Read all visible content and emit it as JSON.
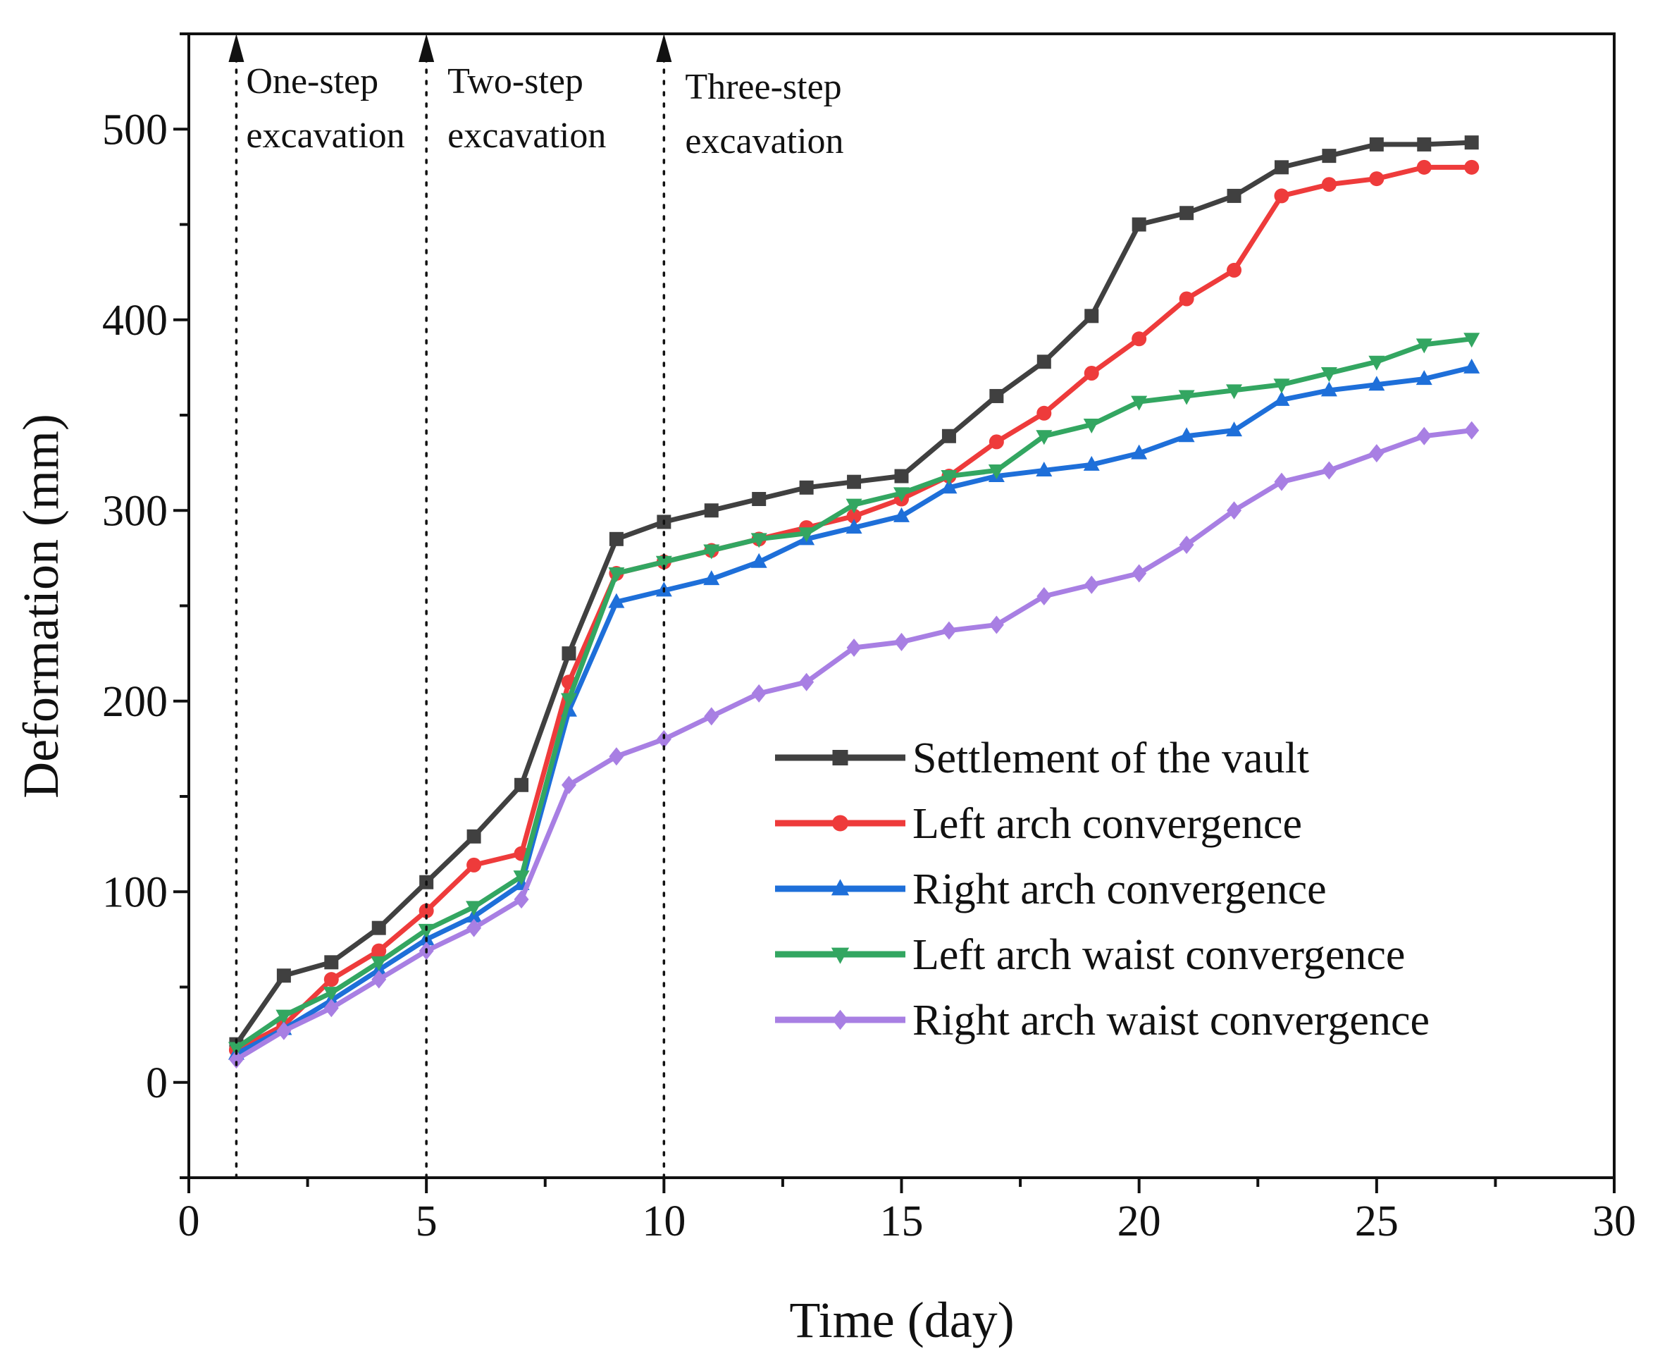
{
  "chart_data": {
    "type": "line",
    "title": "",
    "xlabel": "Time (day)",
    "ylabel": "Deformation (mm)",
    "xlim": [
      0,
      30
    ],
    "ylim": [
      -50,
      550
    ],
    "xticks": [
      0,
      5,
      10,
      15,
      20,
      25,
      30
    ],
    "yticks": [
      0,
      100,
      200,
      300,
      400,
      500
    ],
    "grid": false,
    "legend_position": "bottom-right",
    "x": [
      1,
      2,
      3,
      4,
      5,
      6,
      7,
      8,
      9,
      10,
      11,
      12,
      13,
      14,
      15,
      16,
      17,
      18,
      19,
      20,
      21,
      22,
      23,
      24,
      25,
      26,
      27
    ],
    "series": [
      {
        "name": "Settlement of the vault",
        "color": "#404040",
        "marker": "square",
        "values": [
          20,
          56,
          63,
          81,
          105,
          129,
          156,
          225,
          285,
          294,
          300,
          306,
          312,
          315,
          318,
          339,
          360,
          378,
          402,
          450,
          456,
          465,
          480,
          486,
          492,
          492,
          493
        ]
      },
      {
        "name": "Left arch convergence",
        "color": "#ee3b3b",
        "marker": "circle",
        "values": [
          17,
          30,
          54,
          69,
          90,
          114,
          120,
          210,
          267,
          273,
          279,
          285,
          291,
          297,
          306,
          318,
          336,
          351,
          372,
          390,
          411,
          426,
          465,
          471,
          474,
          480,
          480
        ]
      },
      {
        "name": "Right arch convergence",
        "color": "#1e6fd9",
        "marker": "triangle-up",
        "values": [
          15,
          28,
          43,
          59,
          75,
          87,
          104,
          195,
          252,
          258,
          264,
          273,
          285,
          291,
          297,
          312,
          318,
          321,
          324,
          330,
          339,
          342,
          358,
          363,
          366,
          369,
          375
        ]
      },
      {
        "name": "Left arch waist convergence",
        "color": "#33a661",
        "marker": "triangle-down",
        "values": [
          18,
          35,
          47,
          63,
          80,
          92,
          108,
          201,
          267,
          273,
          279,
          285,
          288,
          303,
          309,
          318,
          321,
          339,
          345,
          357,
          360,
          363,
          366,
          372,
          378,
          387,
          390
        ]
      },
      {
        "name": "Right arch waist convergence",
        "color": "#a87fe3",
        "marker": "diamond",
        "values": [
          12,
          27,
          39,
          54,
          69,
          81,
          96,
          156,
          171,
          180,
          192,
          204,
          210,
          228,
          231,
          237,
          240,
          255,
          261,
          267,
          282,
          300,
          315,
          321,
          330,
          339,
          342
        ]
      }
    ],
    "annotations": [
      {
        "day": 1,
        "lines": [
          "One-step",
          "excavation"
        ]
      },
      {
        "day": 5,
        "lines": [
          "Two-step",
          "excavation"
        ]
      },
      {
        "day": 10,
        "lines": [
          "Three-step",
          "excavation"
        ]
      }
    ]
  }
}
